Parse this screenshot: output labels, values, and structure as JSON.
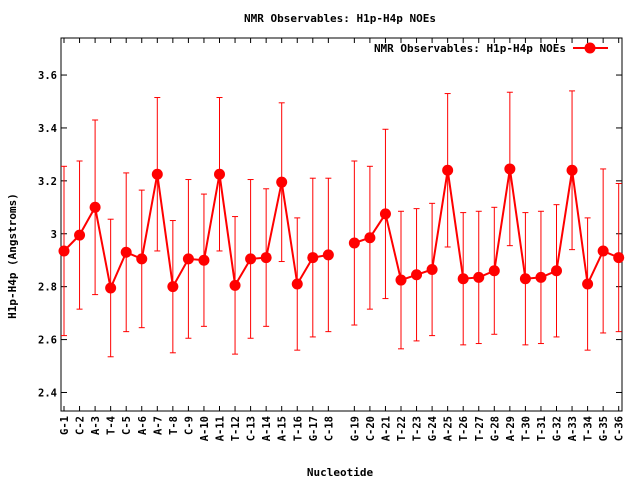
{
  "chart_data": {
    "type": "line",
    "title": "NMR Observables: H1p-H4p NOEs",
    "xlabel": "Nucleotide",
    "ylabel": "H1p-H4p (Angstroms)",
    "ylim": [
      2.33,
      3.74
    ],
    "yticks": [
      2.4,
      2.6,
      2.8,
      3.0,
      3.2,
      3.4,
      3.6
    ],
    "ytick_labels": [
      "2.4",
      "2.6",
      "2.8",
      "3",
      "3.2",
      "3.4",
      "3.6"
    ],
    "grid": false,
    "legend_position": "top-right",
    "series": [
      {
        "name": "NMR Observables: H1p-H4p NOEs",
        "color": "#ff0000",
        "marker": "circle",
        "segments": [
          [
            {
              "label": "G-1",
              "y": 2.935,
              "err": 0.32
            },
            {
              "label": "C-2",
              "y": 2.995,
              "err": 0.28
            },
            {
              "label": "A-3",
              "y": 3.1,
              "err": 0.33
            },
            {
              "label": "T-4",
              "y": 2.795,
              "err": 0.26
            },
            {
              "label": "C-5",
              "y": 2.93,
              "err": 0.3
            },
            {
              "label": "A-6",
              "y": 2.905,
              "err": 0.26
            },
            {
              "label": "A-7",
              "y": 3.225,
              "err": 0.29
            },
            {
              "label": "T-8",
              "y": 2.8,
              "err": 0.25
            },
            {
              "label": "C-9",
              "y": 2.905,
              "err": 0.3
            },
            {
              "label": "A-10",
              "y": 2.9,
              "err": 0.25
            },
            {
              "label": "A-11",
              "y": 3.225,
              "err": 0.29
            },
            {
              "label": "T-12",
              "y": 2.805,
              "err": 0.26
            },
            {
              "label": "C-13",
              "y": 2.905,
              "err": 0.3
            },
            {
              "label": "A-14",
              "y": 2.91,
              "err": 0.26
            },
            {
              "label": "A-15",
              "y": 3.195,
              "err": 0.3
            },
            {
              "label": "T-16",
              "y": 2.81,
              "err": 0.25
            },
            {
              "label": "G-17",
              "y": 2.91,
              "err": 0.3
            },
            {
              "label": "C-18",
              "y": 2.92,
              "err": 0.29
            }
          ],
          [
            {
              "label": "G-19",
              "y": 2.965,
              "err": 0.31
            },
            {
              "label": "C-20",
              "y": 2.985,
              "err": 0.27
            },
            {
              "label": "A-21",
              "y": 3.075,
              "err": 0.32
            },
            {
              "label": "T-22",
              "y": 2.825,
              "err": 0.26
            },
            {
              "label": "T-23",
              "y": 2.845,
              "err": 0.25
            },
            {
              "label": "G-24",
              "y": 2.865,
              "err": 0.25
            },
            {
              "label": "A-25",
              "y": 3.24,
              "err": 0.29
            },
            {
              "label": "T-26",
              "y": 2.83,
              "err": 0.25
            },
            {
              "label": "T-27",
              "y": 2.835,
              "err": 0.25
            },
            {
              "label": "G-28",
              "y": 2.86,
              "err": 0.24
            },
            {
              "label": "A-29",
              "y": 3.245,
              "err": 0.29
            },
            {
              "label": "T-30",
              "y": 2.83,
              "err": 0.25
            },
            {
              "label": "T-31",
              "y": 2.835,
              "err": 0.25
            },
            {
              "label": "G-32",
              "y": 2.86,
              "err": 0.25
            },
            {
              "label": "A-33",
              "y": 3.24,
              "err": 0.3
            },
            {
              "label": "T-34",
              "y": 2.81,
              "err": 0.25
            },
            {
              "label": "G-35",
              "y": 2.935,
              "err": 0.31
            },
            {
              "label": "C-36",
              "y": 2.91,
              "err": 0.28
            }
          ]
        ]
      }
    ]
  }
}
